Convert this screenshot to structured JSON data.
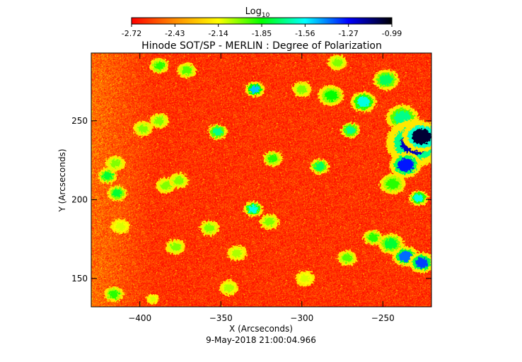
{
  "chart_data": {
    "type": "heatmap",
    "title": "Hinode SOT/SP - MERLIN : Degree of Polarization",
    "subtitle": "9-May-2018 21:00:04.966",
    "xlabel": "X (Arcseconds)",
    "ylabel": "Y (Arcseconds)",
    "xlim": [
      -430,
      -220
    ],
    "ylim": [
      132,
      293
    ],
    "x_ticks": [
      -400,
      -350,
      -300,
      -250
    ],
    "y_ticks": [
      150,
      200,
      250
    ],
    "colorbar": {
      "label_base": "Log",
      "label_sub": "10",
      "min": -2.72,
      "max": -0.99,
      "ticks": [
        "-2.72",
        "-2.43",
        "-2.14",
        "-1.85",
        "-1.56",
        "-1.27",
        "-0.99"
      ],
      "colors": [
        "#ff0000",
        "#ff8c00",
        "#ffff00",
        "#00ff00",
        "#00ffff",
        "#0000ff",
        "#000000"
      ]
    },
    "background_value": -2.62,
    "features": [
      {
        "x": -248,
        "y": 276,
        "r": 4,
        "v": -1.75
      },
      {
        "x": -238,
        "y": 252,
        "r": 5,
        "v": -1.7
      },
      {
        "x": -230,
        "y": 236,
        "r": 9,
        "v": -1.2
      },
      {
        "x": -226,
        "y": 240,
        "r": 6,
        "v": -1.05
      },
      {
        "x": -236,
        "y": 222,
        "r": 5,
        "v": -1.3
      },
      {
        "x": -244,
        "y": 210,
        "r": 4,
        "v": -1.9
      },
      {
        "x": -228,
        "y": 201,
        "r": 3,
        "v": -1.6
      },
      {
        "x": -262,
        "y": 262,
        "r": 4,
        "v": -1.6
      },
      {
        "x": -270,
        "y": 244,
        "r": 3,
        "v": -1.7
      },
      {
        "x": -256,
        "y": 176,
        "r": 3,
        "v": -1.9
      },
      {
        "x": -236,
        "y": 164,
        "r": 4,
        "v": -1.4
      },
      {
        "x": -226,
        "y": 160,
        "r": 4,
        "v": -1.35
      },
      {
        "x": -245,
        "y": 172,
        "r": 4,
        "v": -1.8
      },
      {
        "x": -278,
        "y": 287,
        "r": 3,
        "v": -2.0
      },
      {
        "x": -282,
        "y": 266,
        "r": 4,
        "v": -1.85
      },
      {
        "x": -329,
        "y": 270,
        "r": 3,
        "v": -1.5
      },
      {
        "x": -352,
        "y": 243,
        "r": 3,
        "v": -1.7
      },
      {
        "x": -318,
        "y": 226,
        "r": 3,
        "v": -1.9
      },
      {
        "x": -289,
        "y": 221,
        "r": 3,
        "v": -1.75
      },
      {
        "x": -330,
        "y": 194,
        "r": 3,
        "v": -1.6
      },
      {
        "x": -371,
        "y": 282,
        "r": 3,
        "v": -1.95
      },
      {
        "x": -388,
        "y": 285,
        "r": 3,
        "v": -1.9
      },
      {
        "x": -388,
        "y": 250,
        "r": 3,
        "v": -2.0
      },
      {
        "x": -398,
        "y": 245,
        "r": 3,
        "v": -2.0
      },
      {
        "x": -415,
        "y": 223,
        "r": 3,
        "v": -2.0
      },
      {
        "x": -420,
        "y": 215,
        "r": 3,
        "v": -1.8
      },
      {
        "x": -414,
        "y": 204,
        "r": 3,
        "v": -1.8
      },
      {
        "x": -384,
        "y": 209,
        "r": 3,
        "v": -2.0
      },
      {
        "x": -376,
        "y": 212,
        "r": 3,
        "v": -2.0
      },
      {
        "x": -412,
        "y": 183,
        "r": 3,
        "v": -2.1
      },
      {
        "x": -416,
        "y": 140,
        "r": 3,
        "v": -1.9
      },
      {
        "x": -378,
        "y": 170,
        "r": 3,
        "v": -2.0
      },
      {
        "x": -357,
        "y": 182,
        "r": 3,
        "v": -2.0
      },
      {
        "x": -340,
        "y": 166,
        "r": 3,
        "v": -2.05
      },
      {
        "x": -320,
        "y": 186,
        "r": 3,
        "v": -2.0
      },
      {
        "x": -272,
        "y": 163,
        "r": 3,
        "v": -1.95
      },
      {
        "x": -300,
        "y": 270,
        "r": 3,
        "v": -2.0
      },
      {
        "x": -345,
        "y": 144,
        "r": 3,
        "v": -2.05
      },
      {
        "x": -392,
        "y": 137,
        "r": 2,
        "v": -2.1
      },
      {
        "x": -298,
        "y": 150,
        "r": 3,
        "v": -2.1
      }
    ]
  }
}
